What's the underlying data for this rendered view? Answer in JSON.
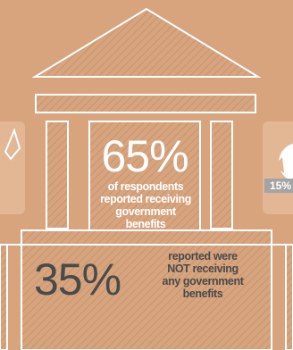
{
  "chart_data": {
    "type": "pictograph",
    "values": [
      {
        "value": 65,
        "label": "65%",
        "caption_lines": [
          "of respondents",
          "reported receiving",
          "government",
          "benefits"
        ]
      },
      {
        "value": 35,
        "label": "35%",
        "caption_lines": [
          "reported were",
          "NOT receiving",
          "any government",
          "benefits"
        ]
      }
    ],
    "side_panel_label": "15%"
  },
  "colors": {
    "background": "#d8a47e",
    "hatch": "#c49673",
    "outline": "#ffffff",
    "text_light": "#ffffff",
    "text_dark": "#4a4a4a",
    "card": "#e3b694"
  }
}
